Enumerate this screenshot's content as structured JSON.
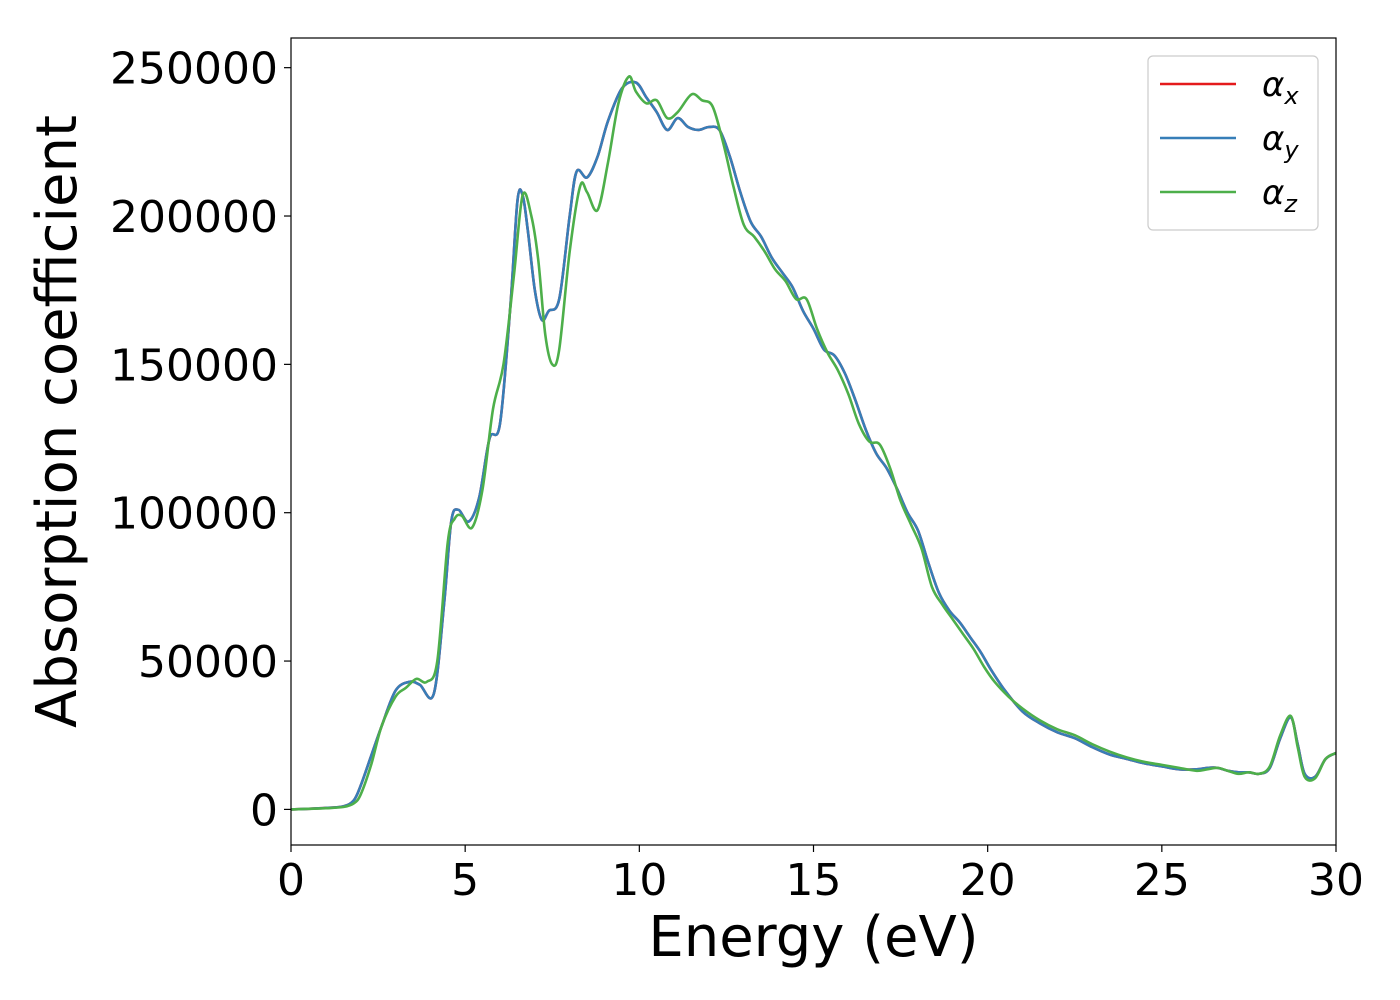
{
  "chart_data": {
    "type": "line",
    "title": "",
    "xlabel": "Energy (eV)",
    "ylabel": "Absorption coefficient",
    "xlim": [
      0,
      30
    ],
    "ylim": [
      -12000,
      260000
    ],
    "xticks": [
      0,
      5,
      10,
      15,
      20,
      25,
      30
    ],
    "yticks": [
      0,
      50000,
      100000,
      150000,
      200000,
      250000
    ],
    "grid": false,
    "legend_position": "top-right",
    "series": [
      {
        "name": "α",
        "subscript": "x",
        "color": "#e41a1c",
        "x": [
          0,
          0.5,
          1,
          1.5,
          1.8,
          2.0,
          2.3,
          2.6,
          3.0,
          3.4,
          3.7,
          4.1,
          4.4,
          4.6,
          4.8,
          5.1,
          5.4,
          5.7,
          6.0,
          6.3,
          6.5,
          6.65,
          6.8,
          7.0,
          7.2,
          7.4,
          7.7,
          8.0,
          8.2,
          8.5,
          8.8,
          9.1,
          9.5,
          9.9,
          10.2,
          10.5,
          10.8,
          11.1,
          11.4,
          11.7,
          12.0,
          12.3,
          12.6,
          12.9,
          13.2,
          13.5,
          13.8,
          14.1,
          14.4,
          14.7,
          15.0,
          15.3,
          15.6,
          15.9,
          16.2,
          16.5,
          16.8,
          17.1,
          17.4,
          17.7,
          18.0,
          18.3,
          18.6,
          18.9,
          19.2,
          19.5,
          19.8,
          20.1,
          20.5,
          21.0,
          21.5,
          22.0,
          22.5,
          23.0,
          23.5,
          24.0,
          24.5,
          25.0,
          25.5,
          26.0,
          26.3,
          26.6,
          26.9,
          27.2,
          27.5,
          27.8,
          28.1,
          28.4,
          28.7,
          28.9,
          29.1,
          29.4,
          29.7,
          30.0
        ],
        "y": [
          0,
          200,
          500,
          1000,
          3000,
          8000,
          18000,
          28000,
          40000,
          43000,
          42000,
          39000,
          70000,
          97000,
          101000,
          97000,
          105000,
          125000,
          130000,
          170000,
          205000,
          207000,
          195000,
          175000,
          165000,
          168000,
          172000,
          200000,
          215000,
          213000,
          220000,
          232000,
          243000,
          245000,
          240000,
          235000,
          229000,
          233000,
          230000,
          229000,
          230000,
          229000,
          220000,
          208000,
          198000,
          193000,
          186000,
          181000,
          176000,
          168000,
          162000,
          155000,
          153000,
          147000,
          138000,
          128000,
          120000,
          115000,
          108000,
          100000,
          94000,
          83000,
          73000,
          67000,
          63000,
          58000,
          53000,
          47000,
          40000,
          33000,
          29000,
          26000,
          24000,
          21000,
          18500,
          17000,
          15500,
          14500,
          13500,
          13500,
          14000,
          14000,
          13000,
          12500,
          12500,
          12000,
          14000,
          24000,
          31000,
          22000,
          12000,
          11000,
          17000,
          19000
        ]
      },
      {
        "name": "α",
        "subscript": "y",
        "color": "#377eb8",
        "x": [
          0,
          0.5,
          1,
          1.5,
          1.8,
          2.0,
          2.3,
          2.6,
          3.0,
          3.4,
          3.7,
          4.1,
          4.4,
          4.6,
          4.8,
          5.1,
          5.4,
          5.7,
          6.0,
          6.3,
          6.5,
          6.65,
          6.8,
          7.0,
          7.2,
          7.4,
          7.7,
          8.0,
          8.2,
          8.5,
          8.8,
          9.1,
          9.5,
          9.9,
          10.2,
          10.5,
          10.8,
          11.1,
          11.4,
          11.7,
          12.0,
          12.3,
          12.6,
          12.9,
          13.2,
          13.5,
          13.8,
          14.1,
          14.4,
          14.7,
          15.0,
          15.3,
          15.6,
          15.9,
          16.2,
          16.5,
          16.8,
          17.1,
          17.4,
          17.7,
          18.0,
          18.3,
          18.6,
          18.9,
          19.2,
          19.5,
          19.8,
          20.1,
          20.5,
          21.0,
          21.5,
          22.0,
          22.5,
          23.0,
          23.5,
          24.0,
          24.5,
          25.0,
          25.5,
          26.0,
          26.3,
          26.6,
          26.9,
          27.2,
          27.5,
          27.8,
          28.1,
          28.4,
          28.7,
          28.9,
          29.1,
          29.4,
          29.7,
          30.0
        ],
        "y": [
          0,
          200,
          500,
          1000,
          3000,
          8000,
          18000,
          28000,
          40000,
          43000,
          42000,
          39000,
          70000,
          97000,
          101000,
          97000,
          105000,
          125000,
          130000,
          170000,
          205000,
          207000,
          195000,
          175000,
          165000,
          168000,
          172000,
          200000,
          215000,
          213000,
          220000,
          232000,
          243000,
          245000,
          240000,
          235000,
          229000,
          233000,
          230000,
          229000,
          230000,
          229000,
          220000,
          208000,
          198000,
          193000,
          186000,
          181000,
          176000,
          168000,
          162000,
          155000,
          153000,
          147000,
          138000,
          128000,
          120000,
          115000,
          108000,
          100000,
          94000,
          83000,
          73000,
          67000,
          63000,
          58000,
          53000,
          47000,
          40000,
          33000,
          29000,
          26000,
          24000,
          21000,
          18500,
          17000,
          15500,
          14500,
          13500,
          13500,
          14000,
          14000,
          13000,
          12500,
          12500,
          12000,
          14000,
          24000,
          31000,
          22000,
          12000,
          11000,
          17000,
          19000
        ]
      },
      {
        "name": "α",
        "subscript": "z",
        "color": "#4daf4a",
        "x": [
          0,
          0.5,
          1,
          1.5,
          1.8,
          2.0,
          2.3,
          2.6,
          3.0,
          3.3,
          3.6,
          3.9,
          4.2,
          4.5,
          4.7,
          4.9,
          5.2,
          5.5,
          5.8,
          6.1,
          6.4,
          6.65,
          6.9,
          7.1,
          7.3,
          7.5,
          7.7,
          8.0,
          8.3,
          8.5,
          8.8,
          9.1,
          9.4,
          9.7,
          9.9,
          10.2,
          10.5,
          10.8,
          11.1,
          11.5,
          11.8,
          12.1,
          12.4,
          12.7,
          13.0,
          13.3,
          13.6,
          13.9,
          14.2,
          14.5,
          14.8,
          15.1,
          15.4,
          15.7,
          16.0,
          16.3,
          16.6,
          16.9,
          17.2,
          17.5,
          17.8,
          18.1,
          18.4,
          18.7,
          19.0,
          19.3,
          19.6,
          19.9,
          20.2,
          20.6,
          21.0,
          21.5,
          22.0,
          22.5,
          23.0,
          23.5,
          24.0,
          24.5,
          25.0,
          25.5,
          26.0,
          26.3,
          26.6,
          26.9,
          27.2,
          27.5,
          27.8,
          28.1,
          28.4,
          28.7,
          28.9,
          29.1,
          29.4,
          29.7,
          30.0
        ],
        "y": [
          0,
          200,
          400,
          800,
          2000,
          5000,
          15000,
          28000,
          38000,
          41000,
          44000,
          43000,
          50000,
          90000,
          98000,
          99000,
          95000,
          108000,
          135000,
          150000,
          180000,
          207000,
          200000,
          185000,
          160000,
          150000,
          155000,
          188000,
          210000,
          208000,
          202000,
          218000,
          238000,
          247000,
          242000,
          238000,
          239000,
          233000,
          235000,
          241000,
          239000,
          237000,
          225000,
          210000,
          197000,
          193000,
          188000,
          182000,
          178000,
          172000,
          172000,
          162000,
          154000,
          148000,
          140000,
          130000,
          124000,
          123000,
          115000,
          104000,
          96000,
          88000,
          75000,
          69000,
          64000,
          59000,
          54000,
          48000,
          43000,
          38000,
          34000,
          30000,
          27000,
          25000,
          22000,
          19500,
          17500,
          16000,
          15000,
          14000,
          13000,
          13500,
          14000,
          13000,
          12000,
          12500,
          12000,
          14500,
          25000,
          31500,
          21000,
          11000,
          10500,
          17000,
          19000
        ]
      }
    ]
  }
}
